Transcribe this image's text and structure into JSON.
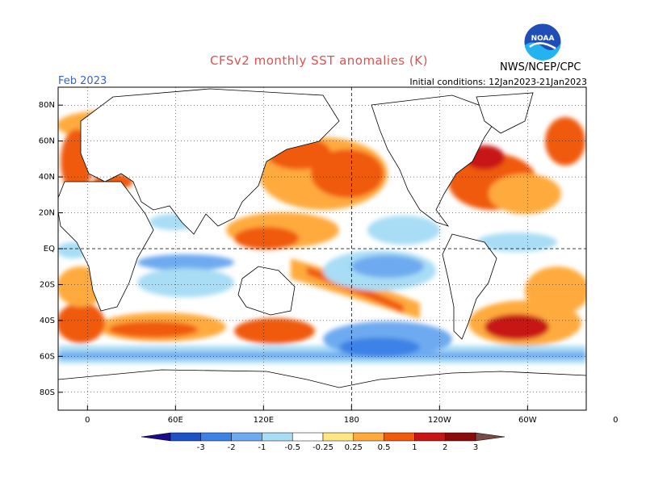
{
  "header": {
    "title": "CFSv2 monthly SST anomalies (K)",
    "valid_month": "Feb 2023",
    "initial_conditions": "Initial conditions: 12Jan2023-21Jan2023",
    "agency": "NWS/NCEP/CPC",
    "logo_text": "NOAA"
  },
  "map": {
    "projection": "cylindrical-equidistant",
    "lon_range": [
      -20,
      340
    ],
    "lat_range": [
      -90,
      90
    ],
    "lat_ticks": [
      "80N",
      "60N",
      "40N",
      "20N",
      "EQ",
      "20S",
      "40S",
      "60S",
      "80S"
    ],
    "lon_ticks": [
      "0",
      "60E",
      "120E",
      "180",
      "120W",
      "60W",
      "0"
    ],
    "grid": "dotted",
    "reference_lines": "equator and dateline dashed"
  },
  "colorbar": {
    "levels": [
      "-3",
      "-2",
      "-1",
      "-0.5",
      "-0.25",
      "0.25",
      "0.5",
      "1",
      "2",
      "3"
    ],
    "colors": [
      "#1a0a8c",
      "#1e50c8",
      "#3c82e6",
      "#6eaaf0",
      "#a8ddf5",
      "#ffffff",
      "#ffe682",
      "#ffaa3c",
      "#f05a0a",
      "#c81414",
      "#8c0a0a",
      "#7a4a46"
    ]
  }
}
